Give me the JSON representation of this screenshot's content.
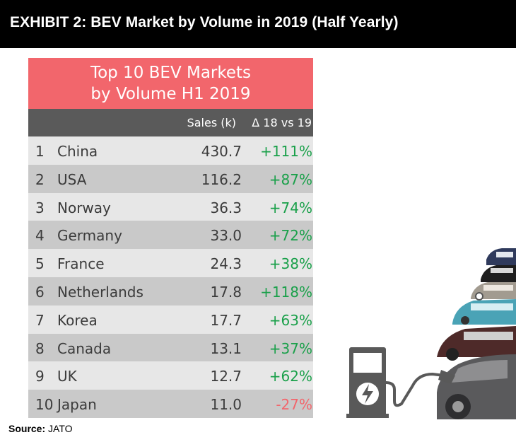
{
  "header": {
    "title": "EXHIBIT 2: BEV Market by Volume in 2019 (Half Yearly)"
  },
  "table": {
    "title_line1": "Top 10 BEV Markets",
    "title_line2": "by Volume H1 2019",
    "columns": {
      "sales": "Sales (k)",
      "delta": "Δ 18 vs 19"
    },
    "rows": [
      {
        "rank": "1",
        "country": "China",
        "sales": "430.7",
        "delta": "+111%",
        "positive": true
      },
      {
        "rank": "2",
        "country": "USA",
        "sales": "116.2",
        "delta": "+87%",
        "positive": true
      },
      {
        "rank": "3",
        "country": "Norway",
        "sales": "36.3",
        "delta": "+74%",
        "positive": true
      },
      {
        "rank": "4",
        "country": "Germany",
        "sales": "33.0",
        "delta": "+72%",
        "positive": true
      },
      {
        "rank": "5",
        "country": "France",
        "sales": "24.3",
        "delta": "+38%",
        "positive": true
      },
      {
        "rank": "6",
        "country": "Netherlands",
        "sales": "17.8",
        "delta": "+118%",
        "positive": true
      },
      {
        "rank": "7",
        "country": "Korea",
        "sales": "17.7",
        "delta": "+63%",
        "positive": true
      },
      {
        "rank": "8",
        "country": "Canada",
        "sales": "13.1",
        "delta": "+37%",
        "positive": true
      },
      {
        "rank": "9",
        "country": "UK",
        "sales": "12.7",
        "delta": "+62%",
        "positive": true
      },
      {
        "rank": "10",
        "country": "Japan",
        "sales": "11.0",
        "delta": "-27%",
        "positive": false
      }
    ]
  },
  "source": {
    "label": "Source:",
    "value": "JATO"
  },
  "colors": {
    "header_bg": "#000000",
    "title_bg": "#f2666c",
    "column_header_bg": "#5a5a5a",
    "row_light": "#e7e7e7",
    "row_dark": "#c9c9c9",
    "positive": "#1aa04a",
    "negative": "#f2666c"
  },
  "illustration": {
    "icons": [
      "charging-station-icon",
      "lightning-bolt-icon",
      "stacked-cars-icon"
    ]
  }
}
